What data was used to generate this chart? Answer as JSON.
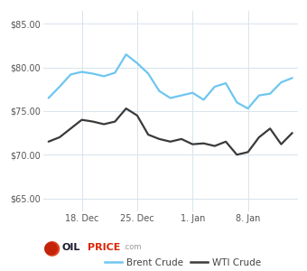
{
  "brent": [
    76.5,
    77.8,
    79.2,
    79.5,
    79.3,
    79.0,
    79.4,
    81.5,
    80.5,
    79.3,
    77.3,
    76.5,
    76.8,
    77.1,
    76.3,
    77.8,
    78.2,
    76.0,
    75.3,
    76.8,
    77.0,
    78.3,
    78.8
  ],
  "wti": [
    71.5,
    72.0,
    73.0,
    74.0,
    73.8,
    73.5,
    73.8,
    75.3,
    74.5,
    72.3,
    71.8,
    71.5,
    71.8,
    71.2,
    71.3,
    71.0,
    71.5,
    70.0,
    70.3,
    72.0,
    73.0,
    71.2,
    72.5
  ],
  "x_ticks": [
    3,
    8,
    13,
    18
  ],
  "x_tick_labels": [
    "18. Dec",
    "25. Dec",
    "1. Jan",
    "8. Jan"
  ],
  "y_ticks": [
    65.0,
    70.0,
    75.0,
    80.0,
    85.0
  ],
  "y_tick_labels": [
    "$65.00",
    "$70.00",
    "$75.00",
    "$80.00",
    "$85.00"
  ],
  "ylim": [
    63.5,
    86.5
  ],
  "xlim": [
    -0.5,
    22.5
  ],
  "brent_color": "#6ec6f0",
  "wti_color": "#3a3a3a",
  "grid_color": "#d8e4ed",
  "bg_color": "#ffffff",
  "legend_brent": "Brent Crude",
  "legend_wti": "WTI Crude",
  "logo_oil_color": "#cc2200",
  "logo_text_color": "#cc2200",
  "logo_com_color": "#999999"
}
